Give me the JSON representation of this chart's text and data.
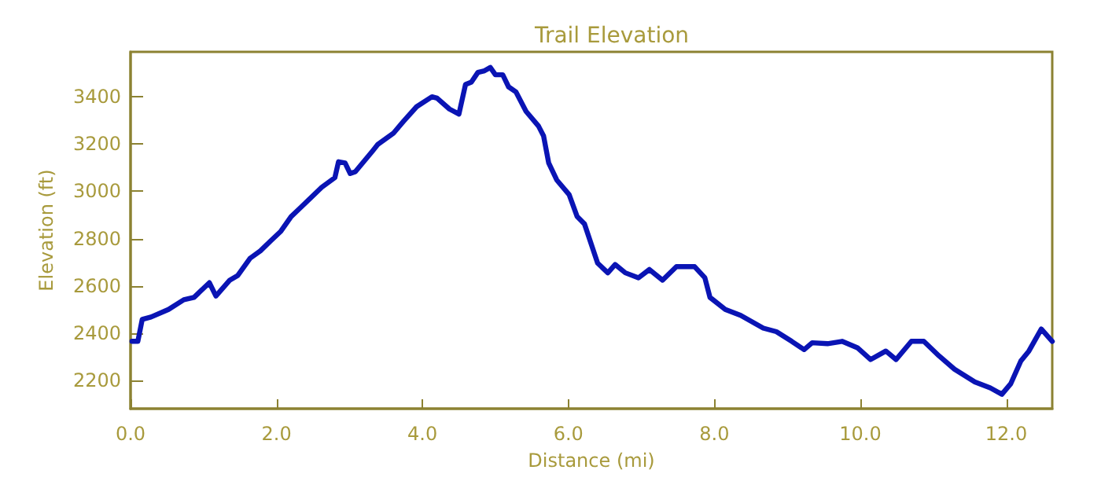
{
  "chart_data": {
    "type": "line",
    "title": "Trail Elevation",
    "xlabel": "Distance (mi)",
    "ylabel": "Elevation (ft)",
    "xlim": [
      0,
      12.63
    ],
    "ylim": [
      2080,
      3590
    ],
    "xticks": [
      {
        "value": 0,
        "label": "0.0"
      },
      {
        "value": 2,
        "label": "2.0"
      },
      {
        "value": 4,
        "label": "4.0"
      },
      {
        "value": 6,
        "label": "6.0"
      },
      {
        "value": 8,
        "label": "8.0"
      },
      {
        "value": 10,
        "label": "10.0"
      },
      {
        "value": 12,
        "label": "12.0"
      }
    ],
    "yticks": [
      2200,
      2400,
      2600,
      2800,
      3000,
      3200,
      3400
    ],
    "grid": false,
    "marker": "none",
    "line_style": "solid",
    "series": [
      {
        "color": "#0a14b4",
        "x": [
          0.02,
          0.1,
          0.16,
          0.28,
          0.52,
          0.73,
          0.87,
          1.08,
          1.17,
          1.36,
          1.47,
          1.64,
          1.78,
          1.92,
          2.06,
          2.2,
          2.34,
          2.62,
          2.8,
          2.85,
          2.94,
          3.01,
          3.08,
          3.32,
          3.39,
          3.6,
          3.74,
          3.92,
          4.13,
          4.2,
          4.37,
          4.5,
          4.59,
          4.67,
          4.76,
          4.85,
          4.93,
          5.0,
          5.1,
          5.18,
          5.28,
          5.42,
          5.59,
          5.66,
          5.73,
          5.84,
          6.01,
          6.12,
          6.22,
          6.4,
          6.54,
          6.64,
          6.78,
          6.96,
          7.11,
          7.29,
          7.48,
          7.73,
          7.87,
          7.94,
          8.15,
          8.36,
          8.67,
          8.85,
          9.06,
          9.23,
          9.34,
          9.55,
          9.75,
          9.96,
          10.14,
          10.35,
          10.49,
          10.7,
          10.87,
          11.08,
          11.29,
          11.57,
          11.78,
          11.94,
          12.06,
          12.2,
          12.31,
          12.48,
          12.63
        ],
        "values": [
          2365,
          2365,
          2458,
          2468,
          2500,
          2541,
          2551,
          2613,
          2557,
          2624,
          2644,
          2717,
          2748,
          2790,
          2831,
          2893,
          2934,
          3017,
          3058,
          3125,
          3120,
          3075,
          3083,
          3172,
          3199,
          3245,
          3296,
          3358,
          3400,
          3394,
          3348,
          3327,
          3452,
          3462,
          3503,
          3510,
          3524,
          3493,
          3493,
          3442,
          3421,
          3338,
          3276,
          3234,
          3120,
          3048,
          2986,
          2893,
          2862,
          2696,
          2655,
          2690,
          2655,
          2634,
          2669,
          2624,
          2681,
          2681,
          2634,
          2551,
          2500,
          2475,
          2421,
          2406,
          2365,
          2330,
          2359,
          2355,
          2365,
          2338,
          2288,
          2324,
          2288,
          2365,
          2365,
          2303,
          2247,
          2193,
          2168,
          2141,
          2185,
          2282,
          2324,
          2417,
          2365
        ]
      }
    ]
  }
}
